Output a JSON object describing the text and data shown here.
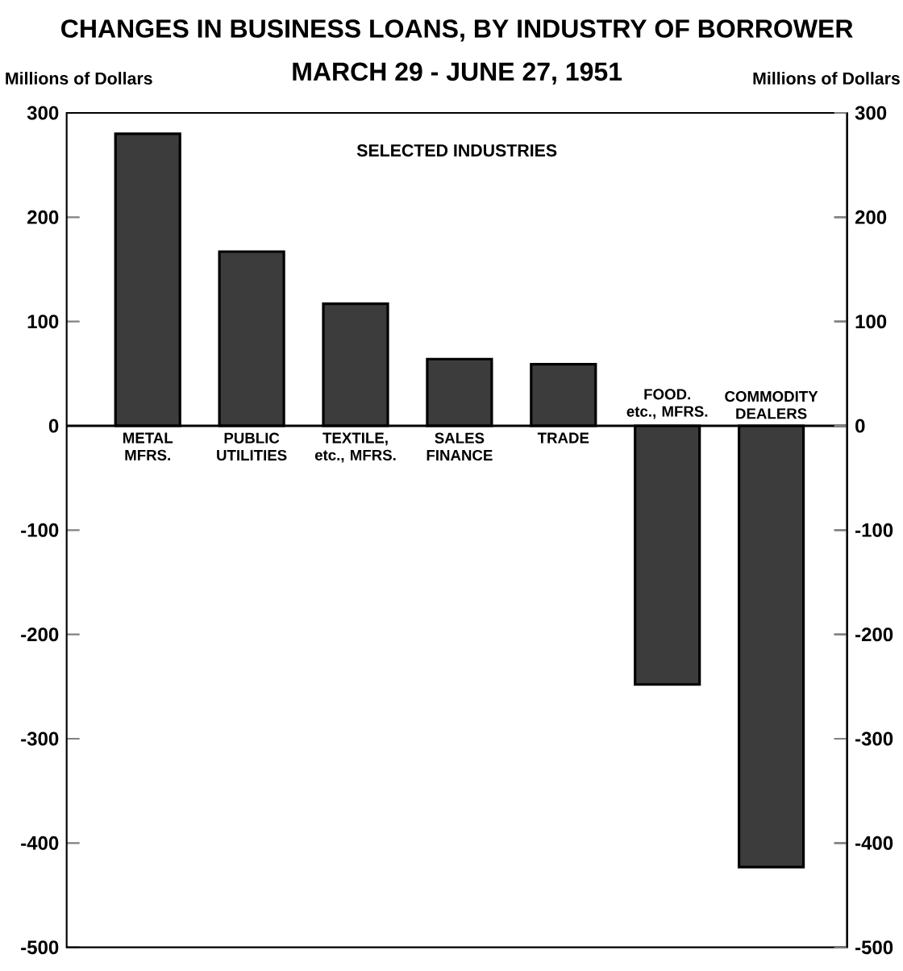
{
  "chart_data": {
    "type": "bar",
    "title": "CHANGES IN BUSINESS LOANS, BY INDUSTRY OF BORROWER",
    "subtitle": "MARCH 29 - JUNE 27, 1951",
    "ylabel": "Millions of Dollars",
    "y2label": "Millions of Dollars",
    "categories": [
      "METAL MFRS.",
      "PUBLIC UTILITIES",
      "TEXTILE, etc., MFRS.",
      "SALES FINANCE",
      "TRADE",
      "FOOD. etc., MFRS.",
      "COMMODITY DEALERS"
    ],
    "values": [
      280,
      167,
      117,
      64,
      59,
      -248,
      -423
    ],
    "color": "#3c3c3c",
    "ylim": [
      -500,
      300
    ],
    "yticks": [
      -500,
      -400,
      -300,
      -200,
      -100,
      0,
      100,
      200,
      300
    ],
    "y2lim": [
      -500,
      300
    ],
    "y2ticks": [
      -500,
      -400,
      -300,
      -200,
      -100,
      0,
      100,
      200,
      300
    ],
    "annotations": [
      "SELECTED INDUSTRIES"
    ]
  }
}
